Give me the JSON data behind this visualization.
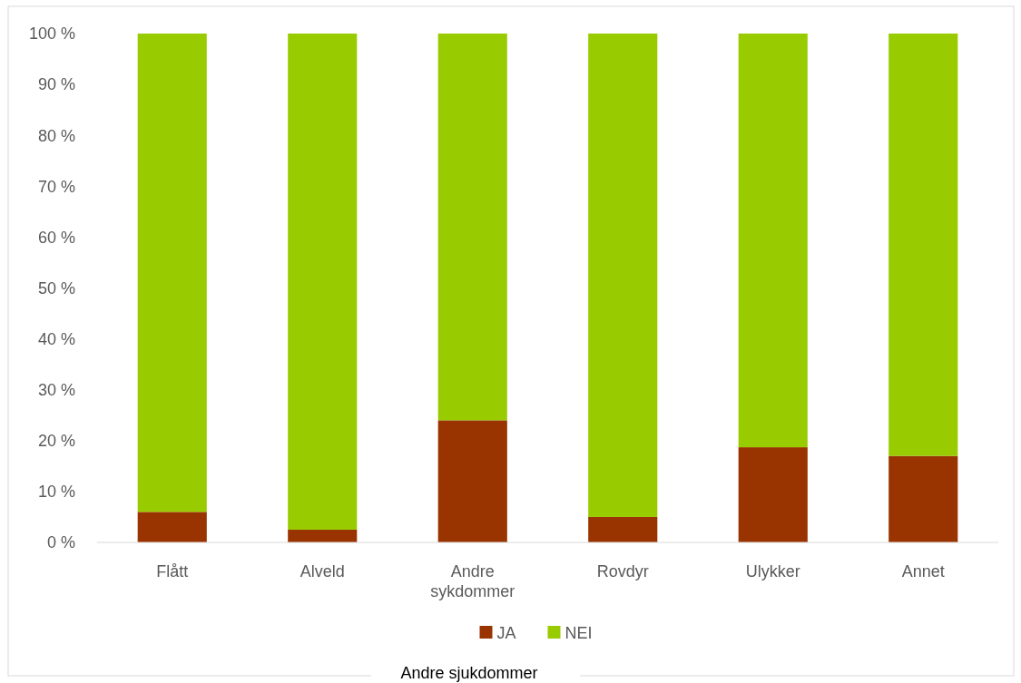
{
  "chart_data": {
    "type": "bar",
    "stacked": true,
    "xlabel": "Andre sjukdommer",
    "categories": [
      "Flått",
      "Alveld",
      "Andre sykdommer",
      "Rovdyr",
      "Ulykker",
      "Annet"
    ],
    "series": [
      {
        "name": "JA",
        "color": "#993300",
        "values": [
          6,
          2.5,
          24,
          5,
          18.7,
          17
        ]
      },
      {
        "name": "NEI",
        "color": "#99cc00",
        "values": [
          94,
          97.5,
          76,
          95,
          81.3,
          83
        ]
      }
    ],
    "ylim": [
      0,
      100
    ],
    "yticks": [
      {
        "value": 0,
        "label": "0 %"
      },
      {
        "value": 10,
        "label": "10 %"
      },
      {
        "value": 20,
        "label": "20 %"
      },
      {
        "value": 30,
        "label": "30 %"
      },
      {
        "value": 40,
        "label": "40 %"
      },
      {
        "value": 50,
        "label": "50 %"
      },
      {
        "value": 60,
        "label": "60 %"
      },
      {
        "value": 70,
        "label": "70 %"
      },
      {
        "value": 80,
        "label": "80 %"
      },
      {
        "value": 90,
        "label": "90 %"
      },
      {
        "value": 100,
        "label": "100 %"
      }
    ],
    "grid": false,
    "legend": "bottom"
  }
}
